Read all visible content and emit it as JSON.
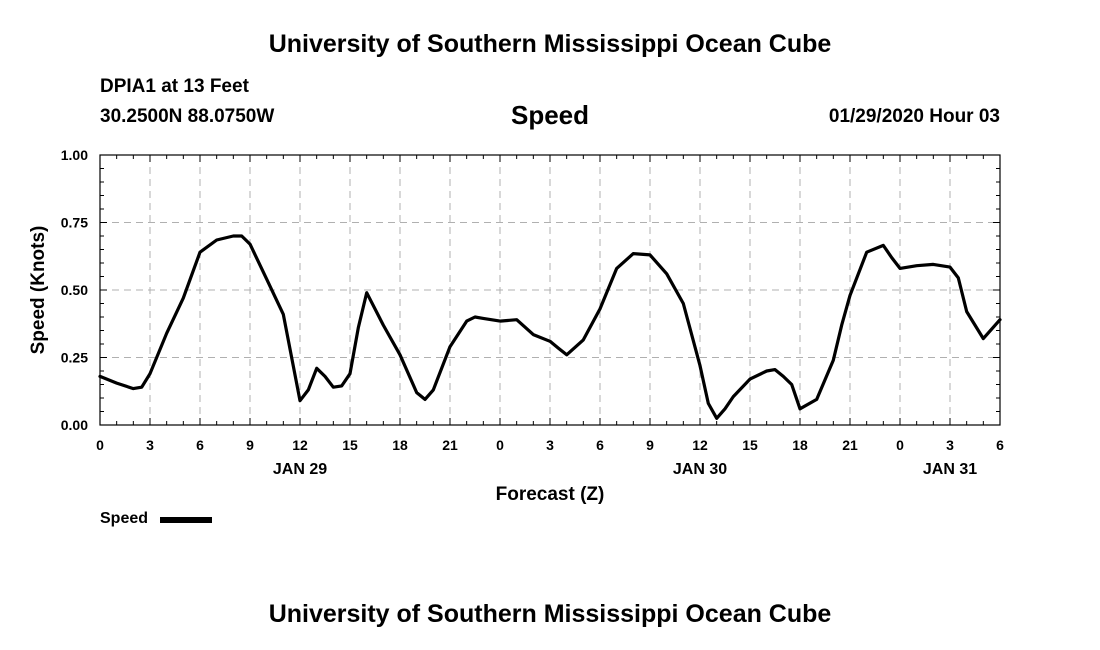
{
  "header": {
    "title": "University of Southern Mississippi Ocean Cube",
    "station": "DPIA1 at 13 Feet",
    "coords": "30.2500N 88.0750W",
    "datetime": "01/29/2020 Hour 03"
  },
  "footer": {
    "title": "University of Southern Mississippi Ocean Cube"
  },
  "legend": {
    "label": "Speed",
    "color": "#000000"
  },
  "chart_data": {
    "type": "line",
    "title": "Speed",
    "xlabel": "Forecast (Z)",
    "ylabel": "Speed (Knots)",
    "ylim": [
      0,
      1
    ],
    "yticks": [
      "0.00",
      "0.25",
      "0.50",
      "0.75",
      "1.00"
    ],
    "xlim": [
      0,
      54
    ],
    "xticks": [
      "0",
      "3",
      "6",
      "9",
      "12",
      "15",
      "18",
      "21",
      "0",
      "3",
      "6",
      "9",
      "12",
      "15",
      "18",
      "21",
      "0",
      "3",
      "6"
    ],
    "date_labels": [
      {
        "label": "JAN 29",
        "hour": 12
      },
      {
        "label": "JAN 30",
        "hour": 36
      },
      {
        "label": "JAN 31",
        "hour": 51
      }
    ],
    "grid": true,
    "legend_position": "bottom-left",
    "series": [
      {
        "name": "Speed",
        "x": [
          0,
          1,
          2,
          2.5,
          3,
          4,
          5,
          6,
          7,
          8,
          8.5,
          9,
          10,
          11,
          12,
          12.5,
          13,
          13.5,
          14,
          14.5,
          15,
          15.5,
          16,
          17,
          18,
          19,
          19.5,
          20,
          21,
          22,
          22.5,
          23,
          24,
          25,
          26,
          27,
          27.5,
          28,
          29,
          30,
          31,
          32,
          33,
          34,
          35,
          36,
          36.5,
          37,
          37.5,
          38,
          39,
          40,
          40.5,
          41,
          41.5,
          42,
          43,
          44,
          44.5,
          45,
          46,
          47,
          47.5,
          48,
          49,
          50,
          51,
          51.5,
          52,
          53,
          54
        ],
        "values": [
          0.18,
          0.155,
          0.135,
          0.14,
          0.19,
          0.34,
          0.47,
          0.64,
          0.685,
          0.7,
          0.7,
          0.67,
          0.54,
          0.41,
          0.09,
          0.13,
          0.21,
          0.18,
          0.14,
          0.145,
          0.19,
          0.36,
          0.49,
          0.37,
          0.26,
          0.12,
          0.095,
          0.13,
          0.29,
          0.385,
          0.4,
          0.395,
          0.385,
          0.39,
          0.335,
          0.31,
          0.285,
          0.26,
          0.315,
          0.43,
          0.58,
          0.635,
          0.63,
          0.56,
          0.45,
          0.22,
          0.08,
          0.025,
          0.06,
          0.105,
          0.17,
          0.2,
          0.205,
          0.18,
          0.15,
          0.06,
          0.095,
          0.24,
          0.37,
          0.48,
          0.64,
          0.665,
          0.62,
          0.58,
          0.59,
          0.595,
          0.585,
          0.545,
          0.42,
          0.32,
          0.39
        ]
      }
    ]
  }
}
